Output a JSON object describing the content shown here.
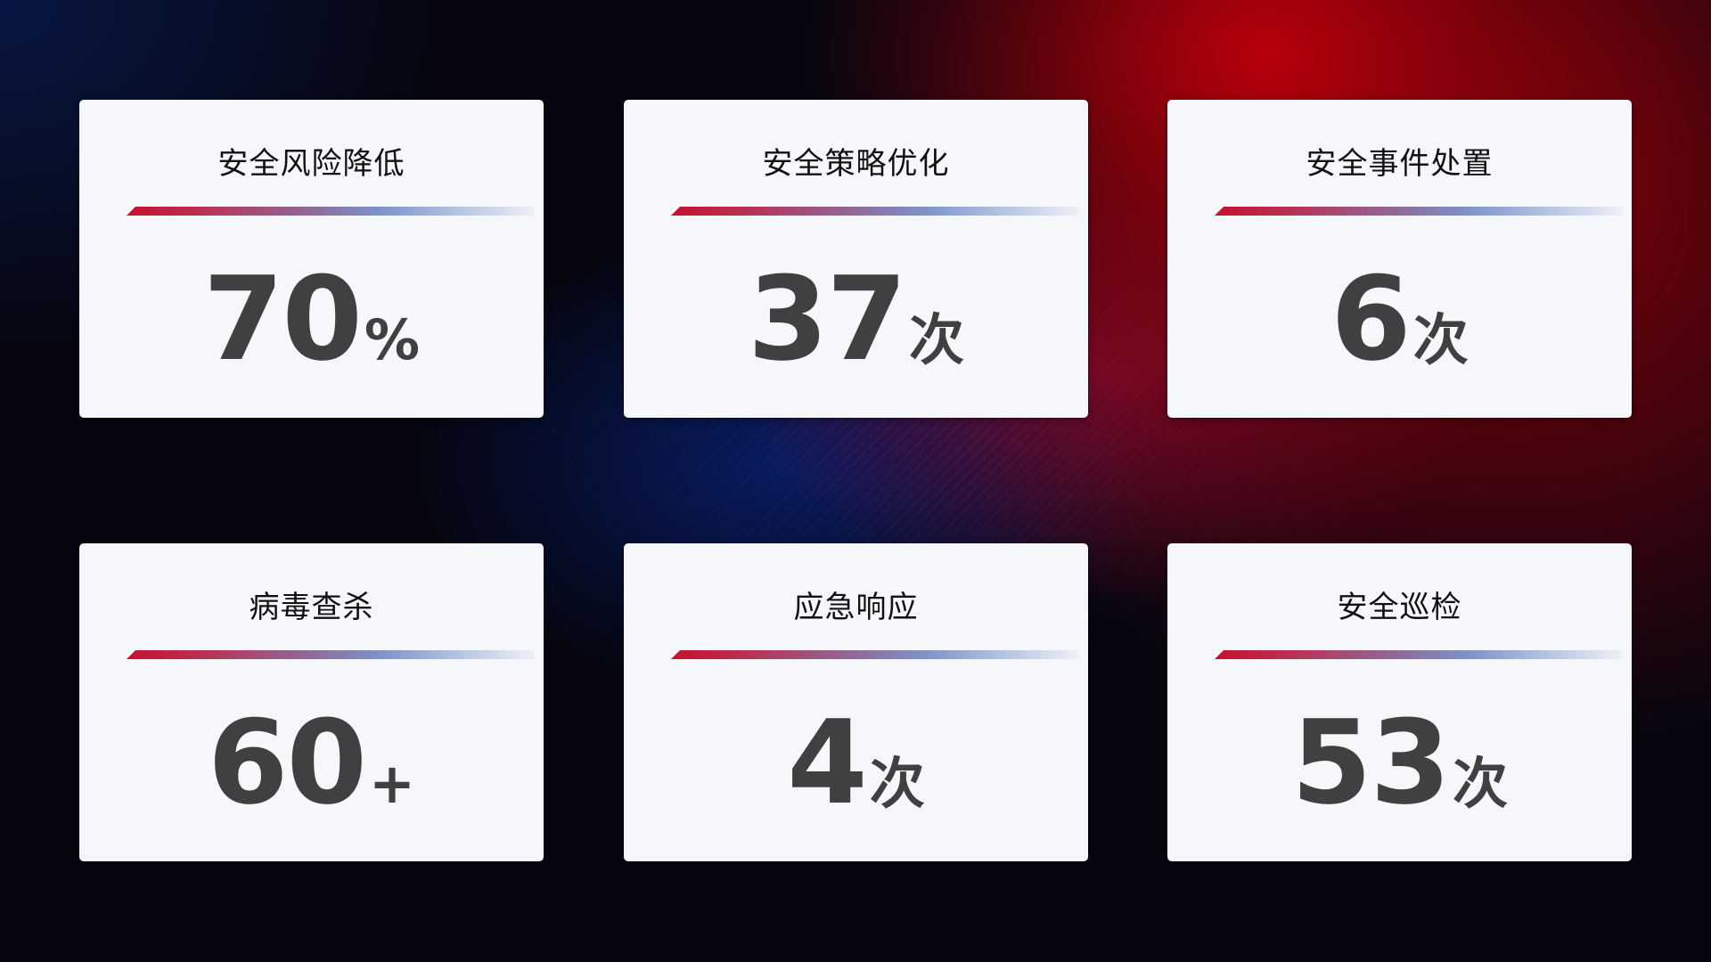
{
  "cards": [
    {
      "title": "安全风险降低",
      "value": "70",
      "unit": "%"
    },
    {
      "title": "安全策略优化",
      "value": "37",
      "unit": "次"
    },
    {
      "title": "安全事件处置",
      "value": "6",
      "unit": "次"
    },
    {
      "title": "病毒查杀",
      "value": "60",
      "unit": "+"
    },
    {
      "title": "应急响应",
      "value": "4",
      "unit": "次"
    },
    {
      "title": "安全巡检",
      "value": "53",
      "unit": "次"
    }
  ],
  "colors": {
    "accent_red": "#c8102e",
    "accent_blue": "#7d93c8",
    "card_bg": "#f6f7fb",
    "number": "#404040"
  }
}
